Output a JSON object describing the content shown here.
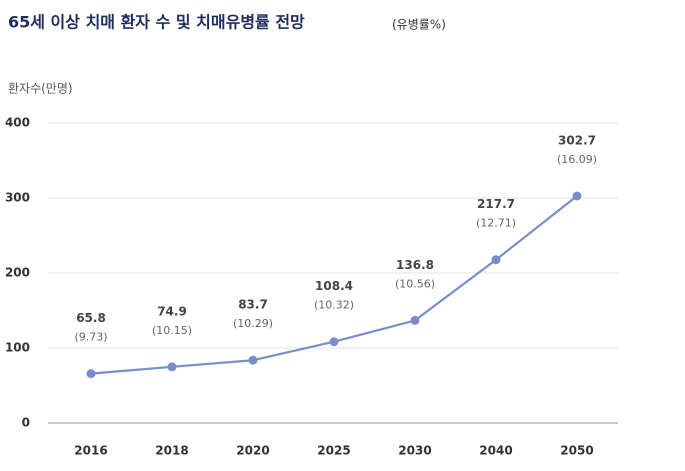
{
  "chart_data": {
    "type": "line",
    "title": "65세 이상 치매 환자 수 및 치매유병률 전망",
    "subtitle": "(유병률%)",
    "y_label": "환자수(만명)",
    "categories": [
      "2016",
      "2018",
      "2020",
      "2025",
      "2030",
      "2040",
      "2050"
    ],
    "series": [
      {
        "color": "#7a8dc9",
        "values": [
          65.8,
          74.9,
          83.7,
          108.4,
          136.8,
          217.7,
          302.7
        ]
      }
    ],
    "rate_labels": [
      "(9.73)",
      "(10.15)",
      "(10.29)",
      "(10.32)",
      "(10.56)",
      "(12.71)",
      "(16.09)"
    ],
    "ylim": [
      0,
      400
    ],
    "yticks": [
      0,
      100,
      200,
      300,
      400
    ],
    "grid": true
  }
}
